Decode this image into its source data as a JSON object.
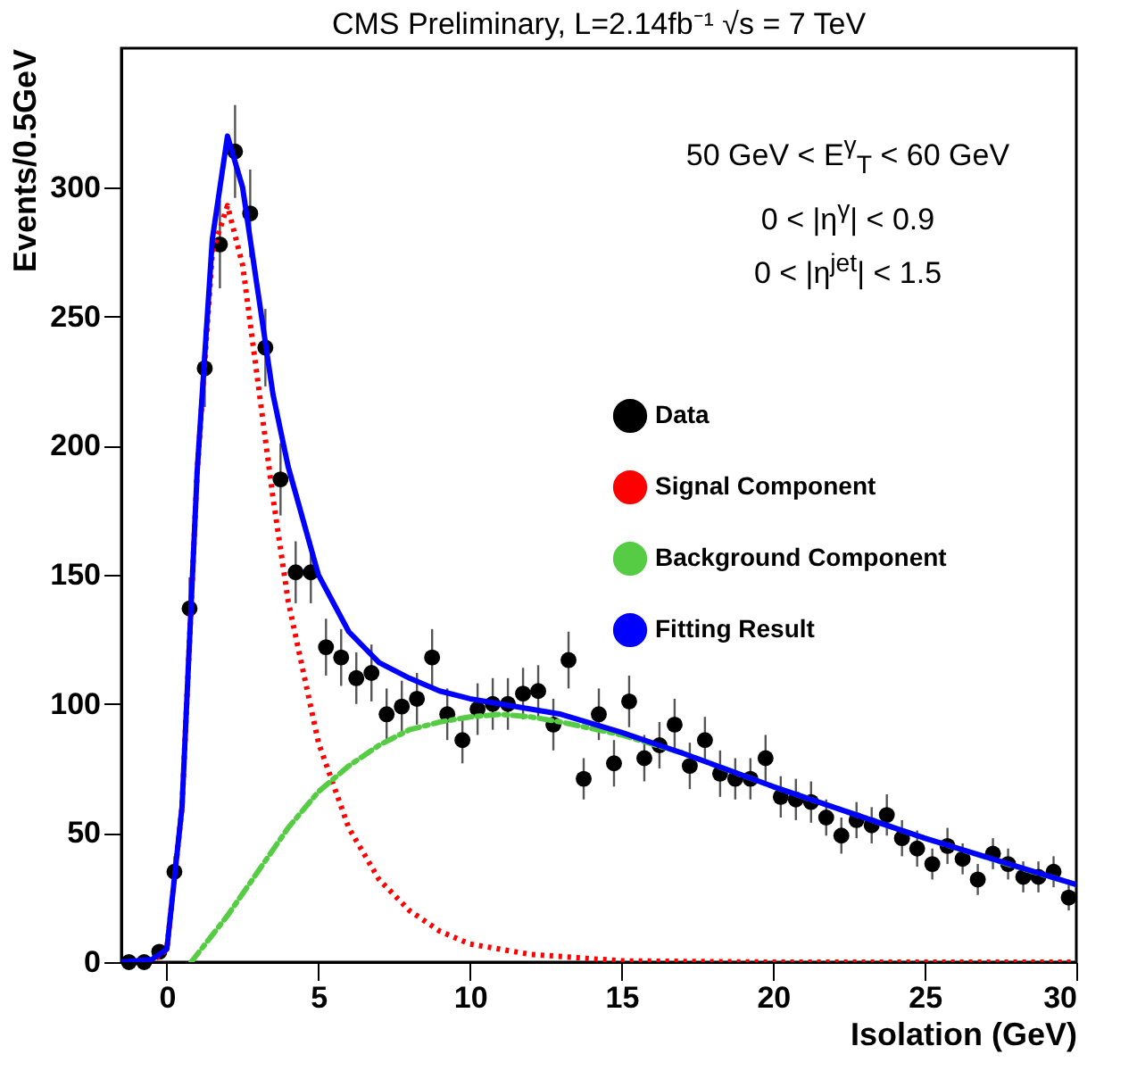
{
  "chart_data": {
    "type": "scatter",
    "title": "CMS Preliminary, L=2.14fb⁻¹  √s = 7 TeV",
    "xlabel": "Isolation (GeV)",
    "ylabel": "Events/0.5GeV",
    "annotations": [
      "50 GeV < E$^{γ}$$_{T}$ < 60 GeV",
      "0 < |η$^{γ}$| < 0.9",
      "0 < |η$^{jet}$| < 1.5"
    ],
    "xlim": [
      -1.5,
      30
    ],
    "xticks": [
      0,
      5,
      10,
      15,
      20,
      25,
      30
    ],
    "ylim": [
      0,
      354
    ],
    "yticks": [
      0,
      50,
      100,
      150,
      200,
      250,
      300
    ],
    "grid": false,
    "legend": "right",
    "series": [
      {
        "name": "Data",
        "marker": "circle",
        "color": "#000000",
        "x": [
          -1.25,
          -0.75,
          -0.25,
          0.25,
          0.75,
          1.25,
          1.75,
          2.25,
          2.75,
          3.25,
          3.75,
          4.25,
          4.75,
          5.25,
          5.75,
          6.25,
          6.75,
          7.25,
          7.75,
          8.25,
          8.75,
          9.25,
          9.75,
          10.25,
          10.75,
          11.25,
          11.75,
          12.25,
          12.75,
          13.25,
          13.75,
          14.25,
          14.75,
          15.25,
          15.75,
          16.25,
          16.75,
          17.25,
          17.75,
          18.25,
          18.75,
          19.25,
          19.75,
          20.25,
          20.75,
          21.25,
          21.75,
          22.25,
          22.75,
          23.25,
          23.75,
          24.25,
          24.75,
          25.25,
          25.75,
          26.25,
          26.75,
          27.25,
          27.75,
          28.25,
          28.75,
          29.25,
          29.75
        ],
        "values": [
          0,
          0,
          4,
          35,
          137,
          230,
          278,
          314,
          290,
          238,
          187,
          151,
          151,
          122,
          118,
          110,
          112,
          96,
          99,
          102,
          118,
          96,
          86,
          98,
          100,
          100,
          104,
          105,
          92,
          117,
          71,
          96,
          77,
          101,
          79,
          84,
          92,
          76,
          86,
          73,
          71,
          71,
          79,
          64,
          63,
          62,
          56,
          49,
          55,
          53,
          57,
          48,
          44,
          38,
          45,
          40,
          32,
          42,
          38,
          33,
          33,
          35,
          25
        ],
        "errors": [
          null,
          null,
          2,
          6,
          12,
          15,
          17,
          18,
          17,
          15,
          14,
          12,
          12,
          11,
          11,
          10,
          11,
          10,
          10,
          10,
          11,
          10,
          9,
          10,
          10,
          10,
          10,
          10,
          10,
          11,
          8,
          10,
          9,
          10,
          9,
          9,
          10,
          9,
          9,
          9,
          8,
          8,
          9,
          8,
          8,
          8,
          7,
          7,
          7,
          7,
          8,
          7,
          7,
          6,
          7,
          6,
          6,
          6,
          6,
          6,
          6,
          6,
          5
        ]
      },
      {
        "name": "Signal Component",
        "type": "line",
        "line_style": "dotted",
        "color": "#ff0000",
        "x": [
          -1.5,
          -0.5,
          0,
          0.5,
          1,
          1.5,
          2,
          2.5,
          3,
          3.5,
          4,
          5,
          6,
          7,
          8,
          9,
          10,
          12,
          15,
          20,
          30
        ],
        "values": [
          0,
          0,
          5,
          60,
          190,
          275,
          293,
          270,
          225,
          180,
          140,
          85,
          52,
          32,
          20,
          12,
          7,
          3,
          0.5,
          0,
          0
        ]
      },
      {
        "name": "Background Component",
        "type": "line",
        "line_style": "dashed",
        "color": "#55cc44",
        "x": [
          0.8,
          2,
          3,
          4,
          5,
          6,
          7,
          8,
          9,
          10,
          11,
          12,
          13,
          15,
          17,
          20,
          22,
          25,
          28,
          30
        ],
        "values": [
          0,
          18,
          35,
          52,
          66,
          76,
          84,
          90,
          93,
          95,
          96,
          95,
          93,
          88,
          81,
          68,
          60,
          48,
          37,
          30
        ]
      },
      {
        "name": "Fitting Result",
        "type": "line",
        "line_style": "solid",
        "color": "#0000ff",
        "x": [
          -1.5,
          -0.5,
          0,
          0.5,
          1,
          1.5,
          2,
          2.5,
          3,
          3.5,
          4,
          5,
          6,
          7,
          8,
          9,
          10,
          11,
          12,
          13,
          15,
          17,
          20,
          25,
          30
        ],
        "values": [
          0,
          1,
          5,
          60,
          190,
          280,
          320,
          300,
          260,
          220,
          192,
          150,
          128,
          116,
          110,
          105,
          102,
          100,
          98,
          96,
          89,
          81,
          68,
          48,
          30
        ]
      }
    ]
  }
}
